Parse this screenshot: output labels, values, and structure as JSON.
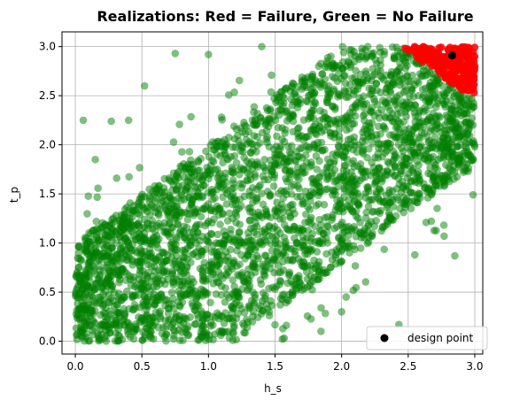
{
  "chart_data": {
    "type": "scatter",
    "title": "Realizations: Red = Failure, Green = No Failure",
    "xlabel": "h_s",
    "ylabel": "t_p",
    "xlim": [
      -0.1,
      3.06
    ],
    "ylim": [
      -0.13,
      3.15
    ],
    "x_ticks": [
      "0.0",
      "0.5",
      "1.0",
      "1.5",
      "2.0",
      "2.5",
      "3.0"
    ],
    "y_ticks": [
      "0.0",
      "0.5",
      "1.0",
      "1.5",
      "2.0",
      "2.5",
      "3.0"
    ],
    "x_tick_values": [
      0,
      0.5,
      1,
      1.5,
      2,
      2.5,
      3
    ],
    "y_tick_values": [
      0,
      0.5,
      1,
      1.5,
      2,
      2.5,
      3
    ],
    "grid": true,
    "legend": {
      "placement": "bottom-right",
      "entries": [
        "design point"
      ]
    },
    "series": [
      {
        "name": "No Failure",
        "color": "#008000",
        "alpha": 0.5,
        "region_description": "dense band of points between lines t_p = h_s - 1.2 and t_p = h_s + 1.0 within [0,3]x[0,3]",
        "sample_points": [
          [
            0.06,
            2.25
          ],
          [
            0.27,
            2.24
          ],
          [
            0.4,
            2.25
          ],
          [
            0.52,
            2.6
          ],
          [
            0.15,
            1.85
          ],
          [
            0.75,
            2.93
          ],
          [
            1.4,
            3.0
          ],
          [
            1.0,
            2.92
          ],
          [
            2.43,
            0.17
          ],
          [
            2.55,
            0.88
          ],
          [
            2.85,
            0.87
          ],
          [
            2.77,
            1.07
          ],
          [
            2.95,
            1.73
          ],
          [
            2.0,
            0.3
          ],
          [
            1.1,
            0.1
          ]
        ]
      },
      {
        "name": "Failure",
        "color": "#ff0000",
        "alpha": 0.5,
        "region_description": "upper-right corner where h_s + t_p > 5.45",
        "sample_points": [
          [
            2.62,
            2.98
          ],
          [
            2.8,
            2.97
          ],
          [
            2.95,
            2.95
          ],
          [
            3.0,
            2.8
          ],
          [
            2.9,
            2.78
          ],
          [
            2.75,
            2.9
          ]
        ]
      },
      {
        "name": "design point",
        "color": "#000000",
        "x": [
          2.83
        ],
        "y": [
          2.91
        ]
      }
    ]
  }
}
